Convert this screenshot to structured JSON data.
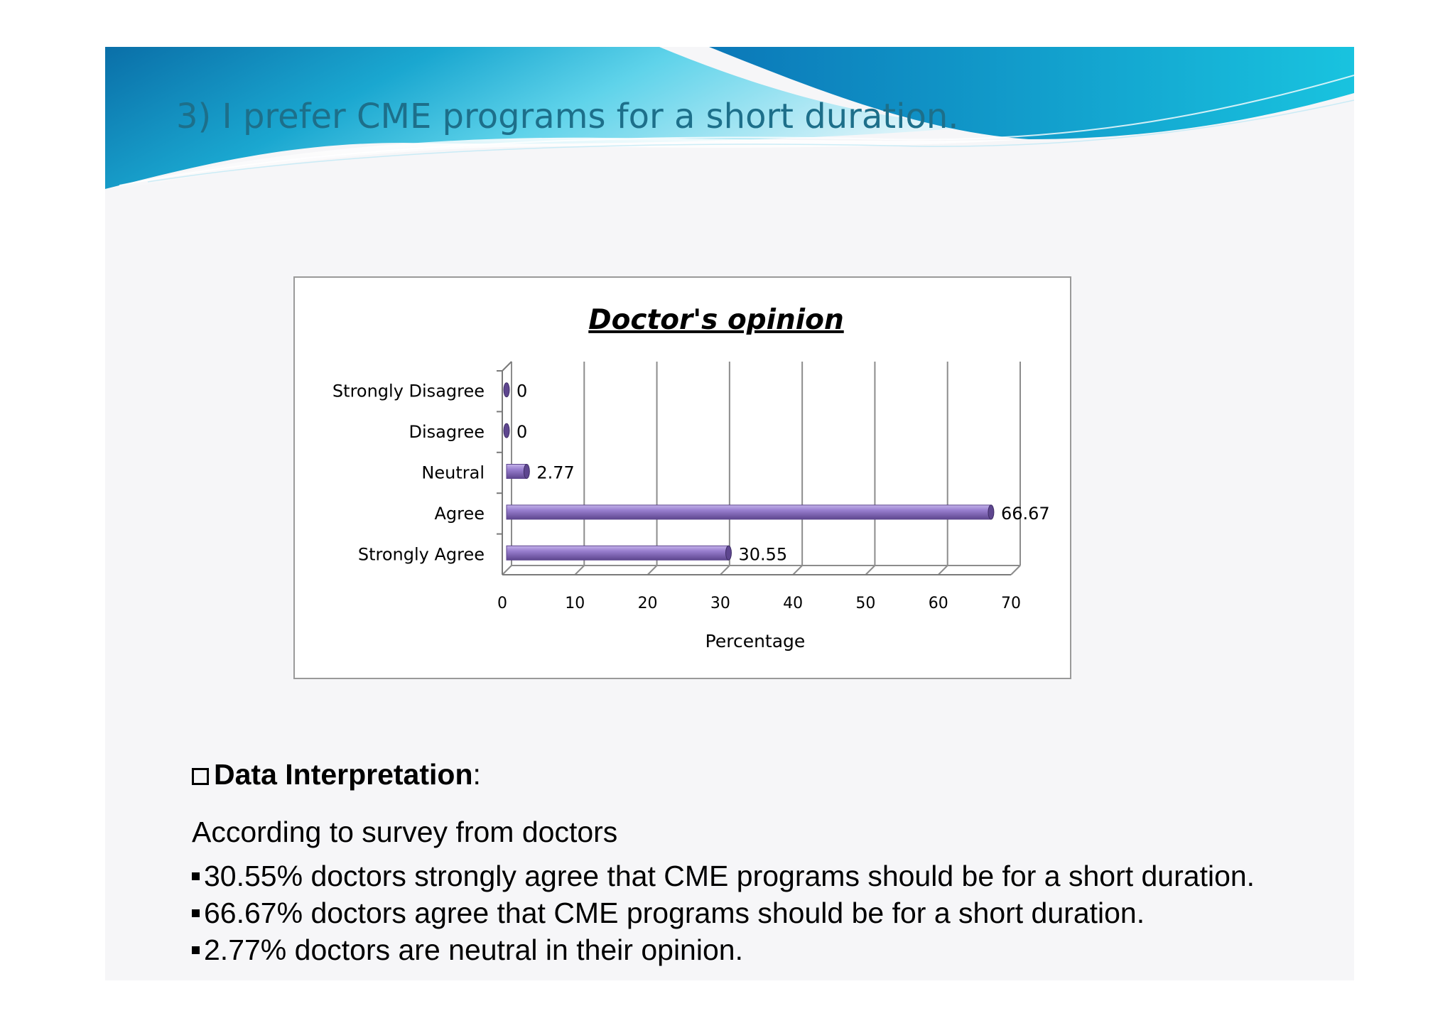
{
  "slide": {
    "title": "3) I prefer CME programs for a short duration."
  },
  "colors": {
    "banner_dark": "#0a6fa8",
    "banner_light": "#19c3df",
    "bar_fill": "#8a6fc0",
    "bar_dark": "#5e468f",
    "title_text": "#1d6f8a"
  },
  "chart_data": {
    "type": "bar",
    "orientation": "horizontal",
    "title": "Doctor's opinion",
    "xlabel": "Percentage",
    "ylabel": "",
    "categories": [
      "Strongly Disagree",
      "Disagree",
      "Neutral",
      "Agree",
      "Strongly Agree"
    ],
    "values": [
      0,
      0,
      2.77,
      66.67,
      30.55
    ],
    "data_labels": [
      "0",
      "0",
      "2.77",
      "66.67",
      "30.55"
    ],
    "xlim": [
      0,
      70
    ],
    "xticks": [
      0,
      10,
      20,
      30,
      40,
      50,
      60,
      70
    ],
    "grid": true,
    "legend": "none",
    "style": "3d-cylinder"
  },
  "interpretation": {
    "heading": "Data Interpretation",
    "heading_suffix": ":",
    "intro": "According to survey from doctors",
    "bullets": [
      "30.55% doctors strongly agree that CME programs should be for a short duration.",
      "66.67% doctors agree that CME programs should be for a short duration.",
      "2.77% doctors are neutral in their opinion."
    ]
  }
}
